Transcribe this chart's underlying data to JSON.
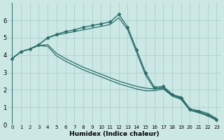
{
  "xlabel": "Humidex (Indice chaleur)",
  "ylabel": "",
  "bg_color": "#cce8e5",
  "grid_color": "#aacfcc",
  "line_color": "#2a6e6a",
  "xlim": [
    -0.5,
    23.5
  ],
  "ylim": [
    0,
    7.0
  ],
  "xticks": [
    0,
    1,
    2,
    3,
    4,
    5,
    6,
    7,
    8,
    9,
    10,
    11,
    12,
    13,
    14,
    15,
    16,
    17,
    18,
    19,
    20,
    21,
    22,
    23
  ],
  "yticks": [
    0,
    1,
    2,
    3,
    4,
    5,
    6
  ],
  "lines": [
    {
      "x": [
        0,
        1,
        2,
        3,
        4,
        5,
        6,
        7,
        8,
        9,
        10,
        11,
        12,
        13,
        14,
        15,
        16,
        17,
        18,
        19,
        20,
        21,
        22,
        23
      ],
      "y": [
        3.8,
        4.2,
        4.35,
        4.6,
        5.0,
        5.2,
        5.35,
        5.45,
        5.6,
        5.7,
        5.8,
        5.9,
        6.35,
        5.6,
        4.3,
        3.0,
        2.15,
        2.2,
        1.75,
        1.55,
        0.9,
        0.75,
        0.55,
        0.3
      ],
      "marker": "D",
      "markersize": 2.5,
      "lw": 1.0
    },
    {
      "x": [
        0,
        1,
        2,
        3,
        4,
        5,
        6,
        7,
        8,
        9,
        10,
        11,
        12,
        13,
        14,
        15,
        16,
        17,
        18,
        19,
        20,
        21,
        22,
        23
      ],
      "y": [
        3.8,
        4.2,
        4.35,
        4.6,
        5.0,
        5.15,
        5.25,
        5.35,
        5.45,
        5.55,
        5.65,
        5.75,
        6.15,
        5.45,
        4.15,
        2.85,
        2.05,
        2.1,
        1.65,
        1.45,
        0.82,
        0.68,
        0.5,
        0.25
      ],
      "marker": "",
      "markersize": 0,
      "lw": 0.9
    },
    {
      "x": [
        0,
        1,
        2,
        3,
        4,
        5,
        6,
        7,
        8,
        9,
        10,
        11,
        12,
        13,
        14,
        15,
        16,
        17,
        18,
        19,
        20,
        21,
        22,
        23
      ],
      "y": [
        3.8,
        4.2,
        4.35,
        4.55,
        4.6,
        4.1,
        3.8,
        3.55,
        3.3,
        3.1,
        2.9,
        2.7,
        2.5,
        2.35,
        2.2,
        2.1,
        2.05,
        2.15,
        1.7,
        1.6,
        0.9,
        0.8,
        0.65,
        0.35
      ],
      "marker": "",
      "markersize": 0,
      "lw": 0.9
    },
    {
      "x": [
        0,
        1,
        2,
        3,
        4,
        5,
        6,
        7,
        8,
        9,
        10,
        11,
        12,
        13,
        14,
        15,
        16,
        17,
        18,
        19,
        20,
        21,
        22,
        23
      ],
      "y": [
        3.8,
        4.2,
        4.35,
        4.55,
        4.5,
        3.95,
        3.65,
        3.4,
        3.15,
        2.95,
        2.75,
        2.55,
        2.35,
        2.2,
        2.05,
        1.95,
        1.95,
        2.05,
        1.65,
        1.52,
        0.82,
        0.72,
        0.58,
        0.28
      ],
      "marker": "",
      "markersize": 0,
      "lw": 0.9
    }
  ]
}
